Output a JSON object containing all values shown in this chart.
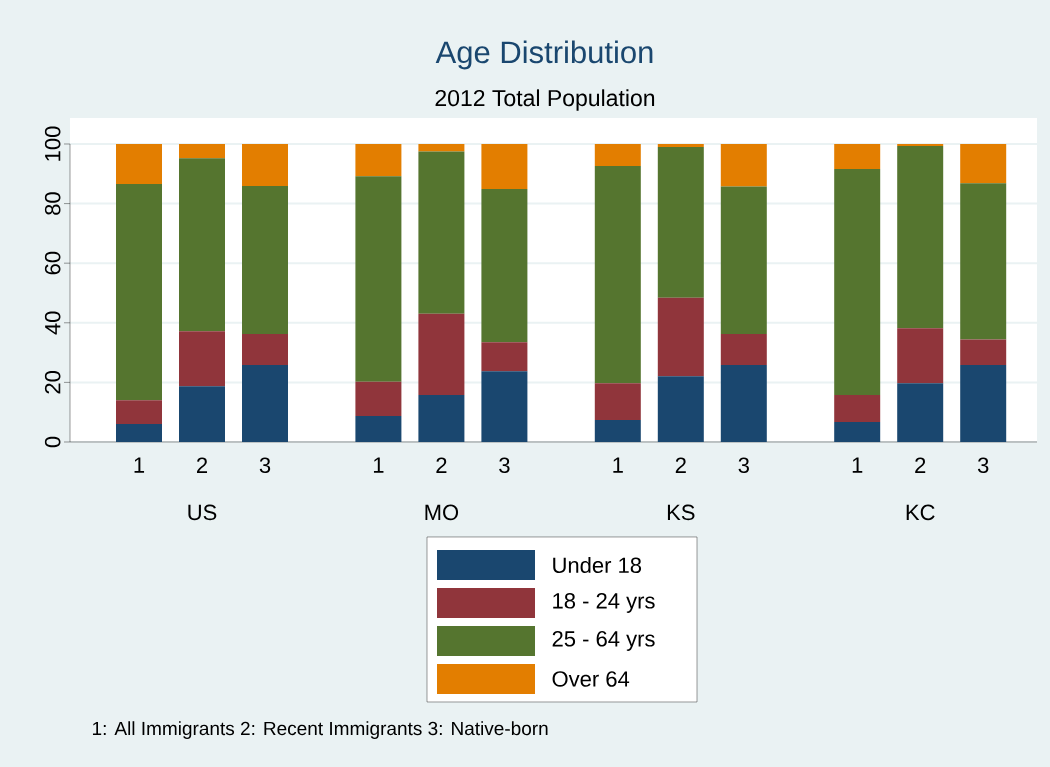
{
  "chart_data": {
    "type": "bar",
    "title": "Age Distribution",
    "subtitle": "2012 Total Population",
    "categories": [
      "1",
      "2",
      "3",
      "1",
      "2",
      "3",
      "1",
      "2",
      "3",
      "1",
      "2",
      "3"
    ],
    "series": [
      {
        "name": "Under 18",
        "color": "#1a476f",
        "values": [
          6.0,
          18.7,
          25.8,
          8.7,
          15.8,
          23.7,
          7.4,
          22.1,
          25.8,
          6.7,
          19.7,
          25.8
        ]
      },
      {
        "name": "18 - 24 yrs",
        "color": "#90353b",
        "values": [
          8.0,
          18.5,
          10.4,
          11.5,
          27.2,
          9.8,
          12.3,
          26.3,
          10.4,
          9.1,
          18.5,
          8.6
        ]
      },
      {
        "name": "25 - 64 yrs",
        "color": "#55752f",
        "values": [
          72.6,
          58.0,
          49.7,
          69.0,
          54.5,
          51.4,
          72.9,
          50.6,
          49.5,
          75.8,
          61.1,
          52.4
        ]
      },
      {
        "name": "Over 64",
        "color": "#e37e00",
        "values": [
          13.4,
          4.8,
          14.1,
          10.8,
          2.5,
          15.1,
          7.4,
          1.0,
          14.3,
          8.4,
          0.7,
          13.2
        ]
      }
    ],
    "stacked": true,
    "ylim": [
      0,
      100
    ],
    "yticks": [
      0,
      20,
      40,
      60,
      80,
      100
    ],
    "grid": "y",
    "legend": "bottom",
    "annotations": [
      "US",
      "MO",
      "KS",
      "KC",
      "1: All Immigrants 2: Recent Immigrants 3: Native-born"
    ]
  }
}
